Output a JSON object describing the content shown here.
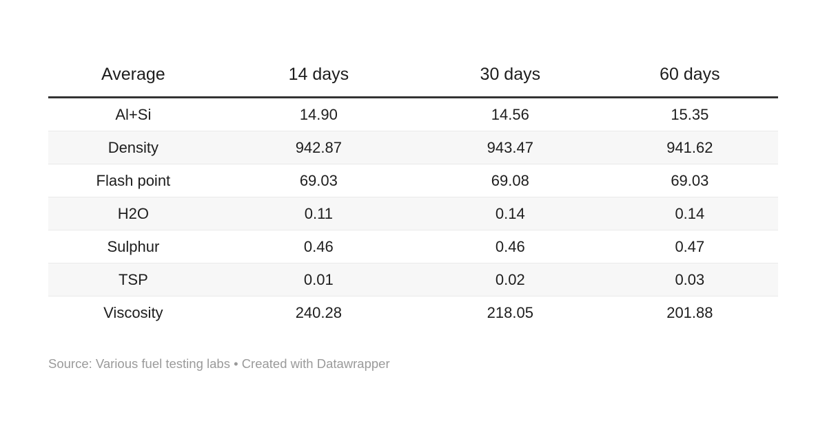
{
  "table": {
    "columns": [
      "Average",
      "14 days",
      "30 days",
      "60 days"
    ],
    "rows": [
      {
        "label": "Al+Si",
        "values": [
          "14.90",
          "14.56",
          "15.35"
        ]
      },
      {
        "label": "Density",
        "values": [
          "942.87",
          "943.47",
          "941.62"
        ]
      },
      {
        "label": "Flash point",
        "values": [
          "69.03",
          "69.08",
          "69.03"
        ]
      },
      {
        "label": "H2O",
        "values": [
          "0.11",
          "0.14",
          "0.14"
        ]
      },
      {
        "label": "Sulphur",
        "values": [
          "0.46",
          "0.46",
          "0.47"
        ]
      },
      {
        "label": "TSP",
        "values": [
          "0.01",
          "0.02",
          "0.03"
        ]
      },
      {
        "label": "Viscosity",
        "values": [
          "240.28",
          "218.05",
          "201.88"
        ]
      }
    ]
  },
  "footer": {
    "source_text": "Source: Various fuel testing labs • Created with ",
    "attribution_link": "Datawrapper"
  },
  "colors": {
    "header_rule": "#333333",
    "row_separator": "#e9e9e9",
    "zebra_stripe": "#f7f7f7",
    "text": "#1d1d1d",
    "footer_text": "#9a9a9a",
    "background": "#ffffff"
  },
  "chart_data": {
    "type": "table",
    "title": "",
    "categories": [
      "Al+Si",
      "Density",
      "Flash point",
      "H2O",
      "Sulphur",
      "TSP",
      "Viscosity"
    ],
    "category_column_header": "Average",
    "series": [
      {
        "name": "14 days",
        "values": [
          14.9,
          942.87,
          69.03,
          0.11,
          0.46,
          0.01,
          240.28
        ]
      },
      {
        "name": "30 days",
        "values": [
          14.56,
          943.47,
          69.08,
          0.14,
          0.46,
          0.02,
          218.05
        ]
      },
      {
        "name": "60 days",
        "values": [
          15.35,
          941.62,
          69.03,
          0.14,
          0.47,
          0.03,
          201.88
        ]
      }
    ],
    "layout_hints": {
      "zebra_striping": true,
      "first_row_stripe": "white",
      "alignment": "center",
      "source_note": "Source: Various fuel testing labs • Created with Datawrapper"
    }
  }
}
